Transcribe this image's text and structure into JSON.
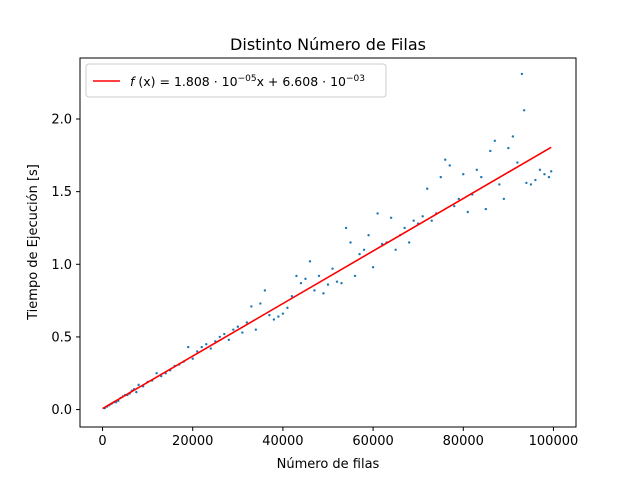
{
  "chart_data": {
    "type": "scatter",
    "title": "Distinto Número de Filas",
    "xlabel": "Número de filas",
    "ylabel": "Tiempo de Ejecución [s]",
    "xlim": [
      -5000,
      105000
    ],
    "ylim": [
      -0.12,
      2.42
    ],
    "xticks": [
      0,
      20000,
      40000,
      60000,
      80000,
      100000
    ],
    "xtick_labels": [
      "0",
      "20000",
      "40000",
      "60000",
      "80000",
      "100000"
    ],
    "yticks": [
      0.0,
      0.5,
      1.0,
      1.5,
      2.0
    ],
    "ytick_labels": [
      "0.0",
      "0.5",
      "1.0",
      "1.5",
      "2.0"
    ],
    "grid": false,
    "legend_position": "top-left",
    "series": [
      {
        "kind": "line",
        "name": "f (x) = 1.808 · 10^-05 x + 6.608 · 10^-03",
        "label_parts": {
          "f": "f",
          "lhs": " (x) = 1.808 · 10",
          "exp1": "−05",
          "mid": "x + 6.608 · 10",
          "exp2": "−03"
        },
        "color": "#ff0000",
        "slope": 1.808e-05,
        "intercept": 0.006608,
        "x": [
          0,
          99500
        ]
      },
      {
        "kind": "scatter",
        "color": "#1f77b4",
        "points": [
          [
            500,
            0.01
          ],
          [
            1000,
            0.02
          ],
          [
            1500,
            0.03
          ],
          [
            2000,
            0.04
          ],
          [
            2500,
            0.05
          ],
          [
            3000,
            0.05
          ],
          [
            3500,
            0.06
          ],
          [
            4000,
            0.08
          ],
          [
            4500,
            0.09
          ],
          [
            5000,
            0.1
          ],
          [
            5500,
            0.1
          ],
          [
            6000,
            0.11
          ],
          [
            6500,
            0.13
          ],
          [
            7000,
            0.14
          ],
          [
            7500,
            0.12
          ],
          [
            8000,
            0.17
          ],
          [
            9000,
            0.16
          ],
          [
            10000,
            0.19
          ],
          [
            11000,
            0.2
          ],
          [
            12000,
            0.25
          ],
          [
            13000,
            0.23
          ],
          [
            14000,
            0.25
          ],
          [
            15000,
            0.27
          ],
          [
            16000,
            0.3
          ],
          [
            17000,
            0.31
          ],
          [
            18000,
            0.33
          ],
          [
            19000,
            0.43
          ],
          [
            20000,
            0.35
          ],
          [
            21000,
            0.4
          ],
          [
            22000,
            0.43
          ],
          [
            23000,
            0.45
          ],
          [
            24000,
            0.42
          ],
          [
            25000,
            0.47
          ],
          [
            26000,
            0.5
          ],
          [
            27000,
            0.52
          ],
          [
            28000,
            0.48
          ],
          [
            29000,
            0.55
          ],
          [
            30000,
            0.57
          ],
          [
            31000,
            0.53
          ],
          [
            32000,
            0.6
          ],
          [
            33000,
            0.71
          ],
          [
            34000,
            0.55
          ],
          [
            35000,
            0.73
          ],
          [
            36000,
            0.82
          ],
          [
            37000,
            0.65
          ],
          [
            38000,
            0.62
          ],
          [
            39000,
            0.64
          ],
          [
            40000,
            0.66
          ],
          [
            41000,
            0.7
          ],
          [
            42000,
            0.78
          ],
          [
            43000,
            0.92
          ],
          [
            44000,
            0.87
          ],
          [
            45000,
            0.9
          ],
          [
            46000,
            1.02
          ],
          [
            47000,
            0.82
          ],
          [
            48000,
            0.92
          ],
          [
            49000,
            0.8
          ],
          [
            50000,
            0.86
          ],
          [
            51000,
            0.97
          ],
          [
            52000,
            0.88
          ],
          [
            53000,
            0.87
          ],
          [
            54000,
            1.25
          ],
          [
            55000,
            1.15
          ],
          [
            56000,
            0.92
          ],
          [
            57000,
            1.07
          ],
          [
            58000,
            1.1
          ],
          [
            59000,
            1.2
          ],
          [
            60000,
            0.98
          ],
          [
            61000,
            1.35
          ],
          [
            62000,
            1.14
          ],
          [
            63000,
            1.15
          ],
          [
            64000,
            1.32
          ],
          [
            65000,
            1.1
          ],
          [
            66000,
            1.2
          ],
          [
            67000,
            1.25
          ],
          [
            68000,
            1.15
          ],
          [
            69000,
            1.3
          ],
          [
            70000,
            1.28
          ],
          [
            71000,
            1.33
          ],
          [
            72000,
            1.52
          ],
          [
            73000,
            1.3
          ],
          [
            74000,
            1.35
          ],
          [
            75000,
            1.6
          ],
          [
            76000,
            1.72
          ],
          [
            77000,
            1.68
          ],
          [
            78000,
            1.4
          ],
          [
            79000,
            1.45
          ],
          [
            80000,
            1.62
          ],
          [
            81000,
            1.36
          ],
          [
            82000,
            1.48
          ],
          [
            83000,
            1.65
          ],
          [
            84000,
            1.6
          ],
          [
            85000,
            1.38
          ],
          [
            86000,
            1.78
          ],
          [
            87000,
            1.85
          ],
          [
            88000,
            1.55
          ],
          [
            89000,
            1.45
          ],
          [
            90000,
            1.8
          ],
          [
            91000,
            1.88
          ],
          [
            92000,
            1.7
          ],
          [
            93000,
            2.31
          ],
          [
            93500,
            2.06
          ],
          [
            94000,
            1.56
          ],
          [
            95000,
            1.55
          ],
          [
            96000,
            1.58
          ],
          [
            97000,
            1.65
          ],
          [
            98000,
            1.62
          ],
          [
            99000,
            1.6
          ],
          [
            99500,
            1.64
          ]
        ]
      }
    ]
  }
}
